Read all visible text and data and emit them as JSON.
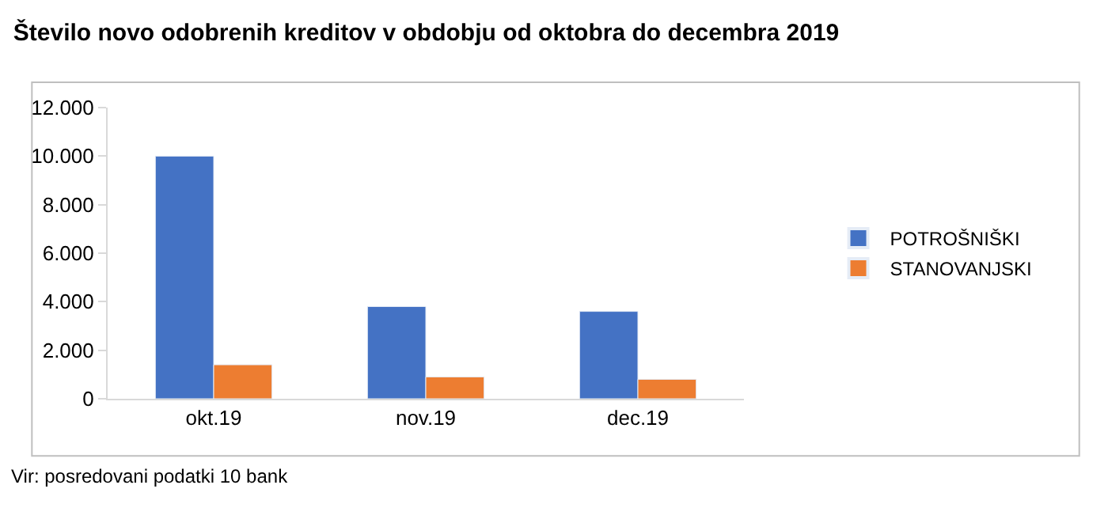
{
  "chart_data": {
    "type": "bar",
    "title": "Število novo odobrenih kreditov v obdobju od oktobra do decembra 2019",
    "categories": [
      "okt.19",
      "nov.19",
      "dec.19"
    ],
    "series": [
      {
        "name": "POTROŠNIŠKI",
        "color": "#4472c4",
        "values": [
          10000,
          3800,
          3600
        ]
      },
      {
        "name": "STANOVANJSKI",
        "color": "#ed7d31",
        "values": [
          1400,
          900,
          800
        ]
      }
    ],
    "ylim": [
      0,
      12000
    ],
    "yticks": [
      {
        "value": 0,
        "label": "0"
      },
      {
        "value": 2000,
        "label": "2.000"
      },
      {
        "value": 4000,
        "label": "4.000"
      },
      {
        "value": 6000,
        "label": "6.000"
      },
      {
        "value": 8000,
        "label": "8.000"
      },
      {
        "value": 10000,
        "label": "10.000"
      },
      {
        "value": 12000,
        "label": "12.000"
      }
    ],
    "legend": "right",
    "annotations": [
      "Vir: posredovani podatki 10 bank"
    ]
  }
}
